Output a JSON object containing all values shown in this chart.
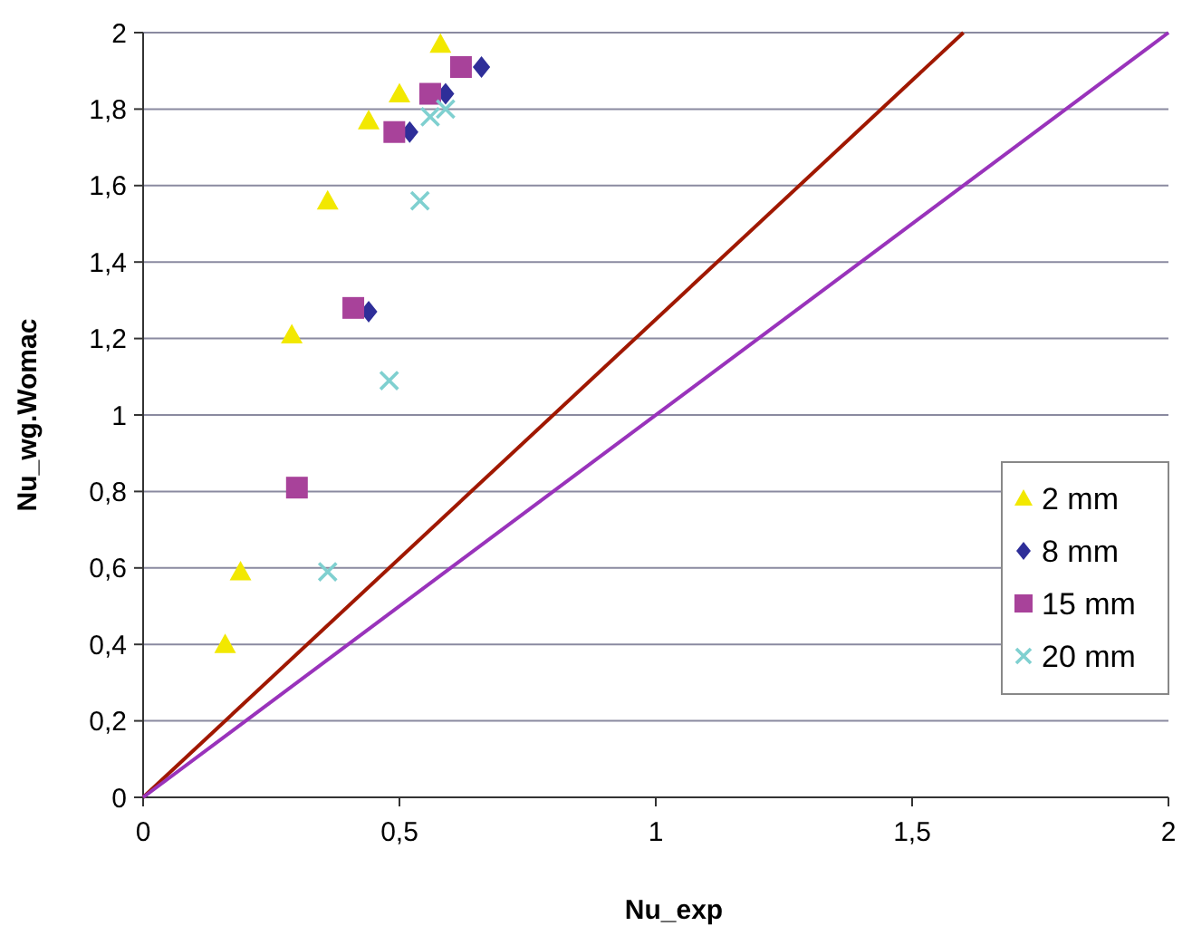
{
  "chart_data": {
    "type": "scatter",
    "xlabel": "Nu_exp",
    "ylabel": "Nu_wg.Womac",
    "xlim": [
      0,
      2
    ],
    "ylim": [
      0,
      2
    ],
    "xticks": [
      0,
      {
        "value": 0.5,
        "label": "0,5"
      },
      1,
      {
        "value": 1.5,
        "label": "1,5"
      },
      2
    ],
    "yticks": [
      0,
      {
        "value": 0.2,
        "label": "0,2"
      },
      {
        "value": 0.4,
        "label": "0,4"
      },
      {
        "value": 0.6,
        "label": "0,6"
      },
      {
        "value": 0.8,
        "label": "0,8"
      },
      1,
      {
        "value": 1.2,
        "label": "1,2"
      },
      {
        "value": 1.4,
        "label": "1,4"
      },
      {
        "value": 1.6,
        "label": "1,6"
      },
      {
        "value": 1.8,
        "label": "1,8"
      },
      2
    ],
    "grid": "y",
    "legend": "right",
    "series": [
      {
        "name": "2 mm",
        "color": "#f2e800",
        "marker": "triangle",
        "x": [
          0.16,
          0.19,
          0.29,
          0.36,
          0.44,
          0.5,
          0.58
        ],
        "values": [
          0.4,
          0.59,
          1.21,
          1.56,
          1.77,
          1.84,
          1.97
        ]
      },
      {
        "name": "8 mm",
        "color": "#2e2e99",
        "marker": "diamond",
        "x": [
          0.44,
          0.52,
          0.59,
          0.66
        ],
        "values": [
          1.27,
          1.74,
          1.84,
          1.91
        ]
      },
      {
        "name": "15 mm",
        "color": "#a8429a",
        "marker": "square",
        "x": [
          0.3,
          0.41,
          0.49,
          0.56,
          0.62
        ],
        "values": [
          0.81,
          1.28,
          1.74,
          1.84,
          1.91
        ]
      },
      {
        "name": "20 mm",
        "color": "#7fd0d0",
        "marker": "cross",
        "x": [
          0.36,
          0.48,
          0.54,
          0.56,
          0.59
        ],
        "values": [
          0.59,
          1.09,
          1.56,
          1.78,
          1.8
        ]
      },
      {
        "type": "line",
        "color": "#a01800",
        "marker": "none",
        "x": [
          0,
          1.6
        ],
        "values": [
          0,
          2
        ]
      },
      {
        "type": "line",
        "color": "#9933bb",
        "marker": "none",
        "x": [
          0,
          2
        ],
        "values": [
          0,
          2
        ]
      }
    ]
  }
}
